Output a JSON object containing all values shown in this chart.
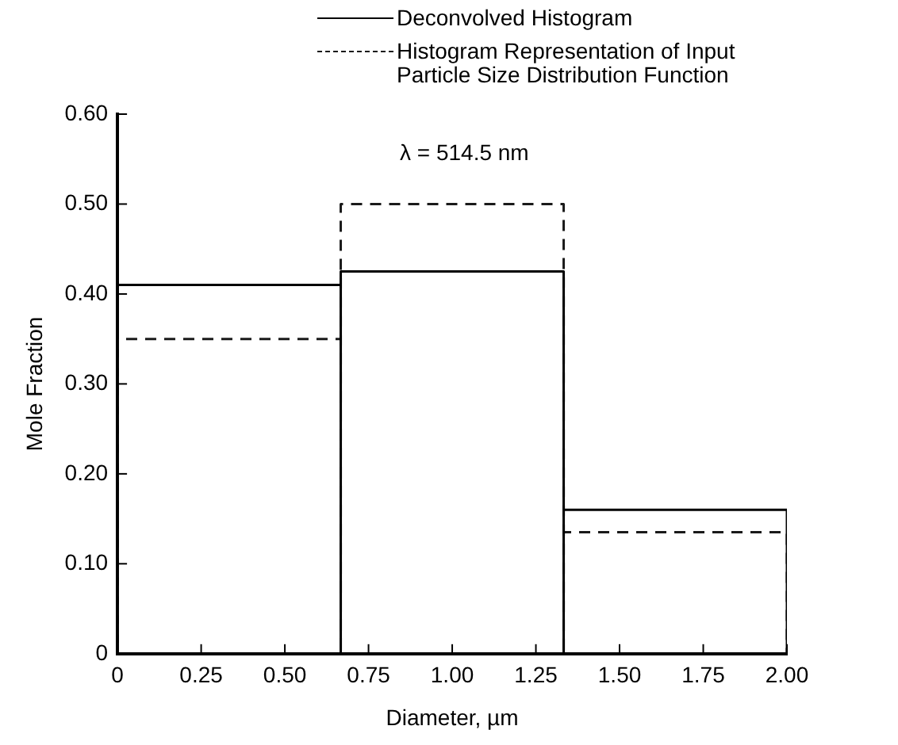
{
  "chart_data": {
    "type": "histogram",
    "xlabel": "Diameter, µm",
    "ylabel": "Mole Fraction",
    "bins": [
      0,
      0.667,
      1.333,
      2.0
    ],
    "series": [
      {
        "name": "Deconvolved Histogram",
        "color": "#000000",
        "line_style": "solid",
        "values": [
          0.41,
          0.425,
          0.16
        ]
      },
      {
        "name": "Histogram Representation of Input Particle Size Distribution Function",
        "color": "#1a1a1a",
        "line_style": "dashed",
        "values": [
          0.35,
          0.5,
          0.135
        ]
      }
    ],
    "xlim": [
      0,
      2
    ],
    "ylim": [
      0,
      0.6
    ],
    "xticks": [
      0,
      0.25,
      {
        "value": 0.5,
        "label": "0.50"
      },
      0.75,
      {
        "value": 1,
        "label": "1.00"
      },
      1.25,
      {
        "value": 1.5,
        "label": "1.50"
      },
      1.75,
      {
        "value": 2,
        "label": "2.00"
      }
    ],
    "yticks": [
      0,
      {
        "value": 0.1,
        "label": "0.10"
      },
      {
        "value": 0.2,
        "label": "0.20"
      },
      {
        "value": 0.3,
        "label": "0.30"
      },
      {
        "value": 0.4,
        "label": "0.40"
      },
      {
        "value": 0.5,
        "label": "0.50"
      },
      {
        "value": 0.6,
        "label": "0.60"
      }
    ],
    "grid": false,
    "legend": "top",
    "annotations": [
      "λ = 514.5 nm"
    ]
  }
}
